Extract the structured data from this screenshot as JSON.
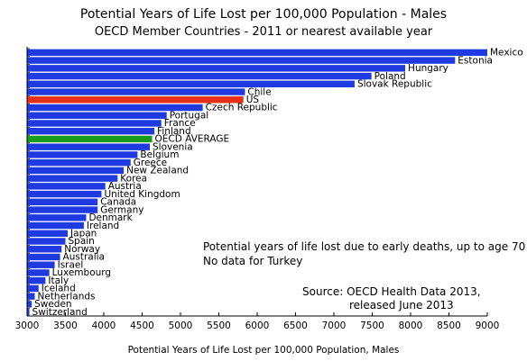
{
  "chart_data": {
    "type": "bar",
    "orientation": "horizontal",
    "title": "Potential Years of Life Lost per 100,000 Population - Males",
    "subtitle": "OECD Member Countries - 2011 or nearest available year",
    "xlabel": "Potential Years of Life Lost per 100,000 Population, Males",
    "ylabel": "",
    "xlim": [
      3000,
      9000
    ],
    "xticks": [
      3000,
      3500,
      4000,
      4500,
      5000,
      5500,
      6000,
      6500,
      7000,
      7500,
      8000,
      8500,
      9000
    ],
    "grid": false,
    "colors": {
      "default": "#1f3ae0",
      "US": "#e83019",
      "OECD AVERAGE": "#1a9a1a"
    },
    "categories": [
      "Mexico",
      "Estonia",
      "Hungary",
      "Poland",
      "Slovak Republic",
      "Chile",
      "US",
      "Czech Republic",
      "Portugal",
      "France",
      "Finland",
      "OECD AVERAGE",
      "Slovenia",
      "Belgium",
      "Greece",
      "New Zealand",
      "Korea",
      "Austria",
      "United Kingdom",
      "Canada",
      "Germany",
      "Denmark",
      "Ireland",
      "Japan",
      "Spain",
      "Norway",
      "Australia",
      "Israel",
      "Luxembourg",
      "Italy",
      "Iceland",
      "Netherlands",
      "Sweden",
      "Switzerland"
    ],
    "values": [
      9000,
      8580,
      7930,
      7490,
      7270,
      5840,
      5820,
      5290,
      4820,
      4750,
      4660,
      4630,
      4600,
      4440,
      4350,
      4260,
      4180,
      4020,
      3970,
      3920,
      3920,
      3770,
      3740,
      3530,
      3500,
      3450,
      3430,
      3360,
      3290,
      3240,
      3150,
      3100,
      3060,
      3030
    ],
    "annotations": [
      "Potential years of life lost due to early deaths, up to age 70",
      "No data for Turkey",
      "Source:  OECD Health Data 2013,",
      "released June 2013"
    ]
  }
}
